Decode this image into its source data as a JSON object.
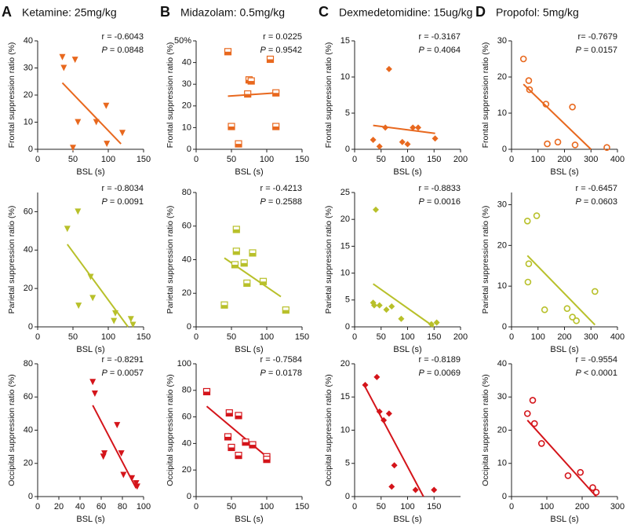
{
  "columns": [
    {
      "letter": "A",
      "title": "Ketamine: 25mg/kg"
    },
    {
      "letter": "B",
      "title": "Midazolam: 0.5mg/kg"
    },
    {
      "letter": "C",
      "title": "Dexmedetomidine: 15ug/kg"
    },
    {
      "letter": "D",
      "title": "Propofol: 5mg/kg"
    }
  ],
  "chart_data": [
    {
      "type": "scatter",
      "marker": "triangle-down",
      "color": "#e8681e",
      "xlabel": "BSL (s)",
      "ylabel": "Frontal suppression ratio (%)",
      "r_text": "r = -0.6043",
      "p_symbol": "P",
      "p_text": " = 0.0848",
      "x": [
        35,
        37,
        53,
        57,
        50,
        83,
        97,
        98,
        120
      ],
      "y": [
        34,
        30,
        33,
        10,
        0.5,
        10,
        16,
        2,
        6
      ],
      "fit_x": [
        35,
        118
      ],
      "fit_y": [
        24.5,
        2
      ],
      "xlim": [
        0,
        150
      ],
      "xticks": [
        0,
        50,
        100,
        150
      ],
      "ylim": [
        0,
        40
      ],
      "yticks": [
        0,
        10,
        20,
        30,
        40
      ]
    },
    {
      "type": "scatter",
      "marker": "half-square",
      "color": "#e8681e",
      "xlabel": "BSL (s)",
      "ylabel": "Frontal suppression ratio (%)",
      "r_text": "r = 0.0225",
      "p_symbol": "P",
      "p_text": " = 0.9542",
      "x": [
        45,
        50,
        60,
        73,
        75,
        78,
        105,
        113,
        113
      ],
      "y": [
        45,
        10.5,
        2.5,
        25.5,
        32,
        31.5,
        41.5,
        26,
        10.5
      ],
      "fit_x": [
        45,
        113
      ],
      "fit_y": [
        24.5,
        26
      ],
      "xlim": [
        0,
        150
      ],
      "xticks": [
        0,
        50,
        100,
        150
      ],
      "ylim": [
        0,
        50
      ],
      "yticks": [
        0,
        10,
        20,
        30,
        40,
        {
          "value": 50,
          "label": "50%"
        }
      ]
    },
    {
      "type": "scatter",
      "marker": "diamond",
      "color": "#e8681e",
      "xlabel": "BSL (s)",
      "ylabel": "Frontal suppression ratio (%)",
      "r_text": "r = -0.3167",
      "p_symbol": "P",
      "p_text": " = 0.4064",
      "x": [
        35,
        47,
        58,
        65,
        90,
        100,
        110,
        120,
        152
      ],
      "y": [
        1.3,
        0.4,
        3,
        11.1,
        1,
        0.7,
        3,
        3,
        1.5
      ],
      "fit_x": [
        35,
        152
      ],
      "fit_y": [
        3.3,
        2.2
      ],
      "xlim": [
        0,
        200
      ],
      "xticks": [
        0,
        50,
        100,
        150,
        200
      ],
      "ylim": [
        0,
        15
      ],
      "yticks": [
        0,
        5,
        10,
        15
      ]
    },
    {
      "type": "scatter",
      "marker": "circle-open",
      "color": "#e8681e",
      "xlabel": "BSL (s)",
      "ylabel": "Frontal suppression ratio (%)",
      "r_text": "r= -0.7679",
      "p_symbol": "P",
      "p_text": " = 0.0157",
      "x": [
        45,
        65,
        68,
        130,
        135,
        175,
        230,
        240,
        360
      ],
      "y": [
        25,
        19,
        16.5,
        12.5,
        1.5,
        2,
        11.7,
        1.2,
        0.5
      ],
      "fit_x": [
        45,
        300
      ],
      "fit_y": [
        18,
        0
      ],
      "xlim": [
        0,
        400
      ],
      "xticks": [
        0,
        100,
        200,
        300,
        400
      ],
      "ylim": [
        0,
        30
      ],
      "yticks": [
        0,
        10,
        20,
        30
      ]
    },
    {
      "type": "scatter",
      "marker": "triangle-down",
      "color": "#b8c02a",
      "xlabel": "BSL (s)",
      "ylabel": "Parietal suppression ratio (%)",
      "r_text": "r = -0.8034",
      "p_symbol": "P",
      "p_text": " = 0.0091",
      "x": [
        42,
        57,
        58,
        75,
        78,
        110,
        108,
        132,
        135
      ],
      "y": [
        51,
        60,
        11,
        26,
        15,
        7,
        3,
        4,
        1
      ],
      "fit_x": [
        42,
        128
      ],
      "fit_y": [
        43,
        0
      ],
      "xlim": [
        0,
        150
      ],
      "xticks": [
        0,
        50,
        100,
        150
      ],
      "ylim": [
        0,
        70
      ],
      "yticks": [
        0,
        20,
        40,
        60
      ]
    },
    {
      "type": "scatter",
      "marker": "half-square",
      "color": "#b8c02a",
      "xlabel": "BSL (s)",
      "ylabel": "Parietal suppression ratio (%)",
      "r_text": "r = -0.4213",
      "p_symbol": "P",
      "p_text": " = 0.2588",
      "x": [
        40,
        55,
        57,
        57,
        68,
        72,
        80,
        95,
        127
      ],
      "y": [
        13,
        37,
        58,
        45,
        38,
        26,
        44,
        27,
        10
      ],
      "fit_x": [
        40,
        120
      ],
      "fit_y": [
        41,
        18
      ],
      "xlim": [
        0,
        150
      ],
      "xticks": [
        0,
        50,
        100,
        150
      ],
      "ylim": [
        0,
        80
      ],
      "yticks": [
        0,
        20,
        40,
        60,
        80
      ]
    },
    {
      "type": "scatter",
      "marker": "diamond",
      "color": "#b8c02a",
      "xlabel": "BSL (s)",
      "ylabel": "Parietal suppression ratio (%)",
      "r_text": "r = -0.8833",
      "p_symbol": "P",
      "p_text": " = 0.0016",
      "x": [
        35,
        37,
        40,
        47,
        60,
        70,
        88,
        145,
        155
      ],
      "y": [
        4.5,
        4,
        21.8,
        4,
        3.2,
        3.8,
        1.5,
        0.5,
        0.8
      ],
      "fit_x": [
        35,
        150
      ],
      "fit_y": [
        8,
        0
      ],
      "xlim": [
        0,
        200
      ],
      "xticks": [
        0,
        50,
        100,
        150,
        200
      ],
      "ylim": [
        0,
        25
      ],
      "yticks": [
        0,
        5,
        10,
        15,
        20,
        25
      ]
    },
    {
      "type": "scatter",
      "marker": "circle-open",
      "color": "#b8c02a",
      "xlabel": "BSL (s)",
      "ylabel": "Parietal suppression ratio (%)",
      "r_text": "r = -0.6457",
      "p_symbol": "P",
      "p_text": " = 0.0603",
      "x": [
        60,
        62,
        65,
        95,
        125,
        210,
        230,
        245,
        315
      ],
      "y": [
        26,
        11,
        15.5,
        27.3,
        4.2,
        4.5,
        2.4,
        1.5,
        8.7
      ],
      "fit_x": [
        60,
        315
      ],
      "fit_y": [
        17.5,
        0.5
      ],
      "xlim": [
        0,
        400
      ],
      "xticks": [
        0,
        100,
        200,
        300,
        400
      ],
      "ylim": [
        0,
        33
      ],
      "yticks": [
        0,
        10,
        20,
        30
      ]
    },
    {
      "type": "scatter",
      "marker": "triangle-down",
      "color": "#d4141a",
      "xlabel": "BSL (s)",
      "ylabel": "Occipital suppression ratio (%)",
      "r_text": "r = -0.8291",
      "p_symbol": "P",
      "p_text": " = 0.0057",
      "x": [
        52,
        54,
        62,
        63,
        75,
        79,
        81,
        89,
        93,
        94
      ],
      "y": [
        69,
        62,
        24,
        26,
        43,
        26,
        13,
        11,
        8,
        6
      ],
      "fit_x": [
        52,
        93
      ],
      "fit_y": [
        55,
        5
      ],
      "xlim": [
        0,
        100
      ],
      "xticks": [
        0,
        20,
        40,
        60,
        80,
        100
      ],
      "ylim": [
        0,
        80
      ],
      "yticks": [
        0,
        20,
        40,
        60,
        80
      ]
    },
    {
      "type": "scatter",
      "marker": "half-square",
      "color": "#d4141a",
      "xlabel": "BSL (s)",
      "ylabel": "Occipital suppression ratio (%)",
      "r_text": "r = -0.7584",
      "p_symbol": "P",
      "p_text": " = 0.0178",
      "x": [
        15,
        45,
        47,
        50,
        60,
        60,
        70,
        80,
        100,
        100
      ],
      "y": [
        79,
        45,
        63,
        37,
        61,
        31,
        41,
        39,
        30,
        28
      ],
      "fit_x": [
        15,
        100
      ],
      "fit_y": [
        68,
        30
      ],
      "xlim": [
        0,
        150
      ],
      "xticks": [
        0,
        50,
        100,
        150
      ],
      "ylim": [
        0,
        100
      ],
      "yticks": [
        0,
        20,
        40,
        60,
        80,
        100
      ]
    },
    {
      "type": "scatter",
      "marker": "diamond",
      "color": "#d4141a",
      "xlabel": "BSL (s)",
      "ylabel": "Occipital suppression ratio (%)",
      "r_text": "r = -0.8189",
      "p_symbol": "P",
      "p_text": " = 0.0069",
      "x": [
        20,
        42,
        47,
        55,
        65,
        70,
        75,
        115,
        150
      ],
      "y": [
        16.8,
        18,
        12.8,
        11.5,
        12.5,
        1.5,
        4.7,
        1,
        1
      ],
      "fit_x": [
        20,
        130
      ],
      "fit_y": [
        16.5,
        0
      ],
      "xlim": [
        0,
        200
      ],
      "xticks": [
        0,
        50,
        100,
        150
      ],
      "ylim": [
        0,
        20
      ],
      "yticks": [
        0,
        5,
        10,
        15,
        20
      ]
    },
    {
      "type": "scatter",
      "marker": "circle-open",
      "color": "#d4141a",
      "xlabel": "BSL (s)",
      "ylabel": "Occipital suppression ratio (%)",
      "r_text": "r = -0.9554",
      "p_symbol": "P",
      "p_text": " < 0.0001",
      "x": [
        45,
        60,
        65,
        85,
        160,
        195,
        230,
        240
      ],
      "y": [
        25,
        29,
        22,
        16,
        6.3,
        7.3,
        2.7,
        1.3
      ],
      "fit_x": [
        45,
        240
      ],
      "fit_y": [
        23,
        0
      ],
      "xlim": [
        0,
        300
      ],
      "xticks": [
        0,
        100,
        200,
        300
      ],
      "ylim": [
        0,
        40
      ],
      "yticks": [
        0,
        10,
        20,
        30,
        40
      ]
    }
  ]
}
